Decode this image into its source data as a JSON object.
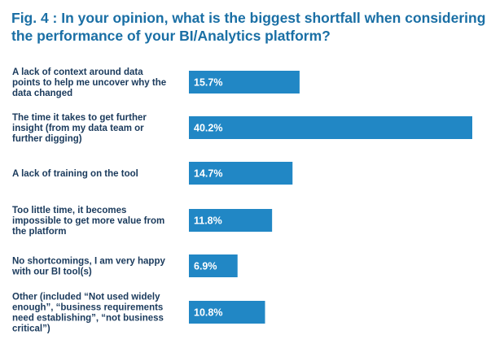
{
  "colors": {
    "title": "#1a6fa5",
    "bar": "#2187c5",
    "category_text": "#1a3a5c",
    "value_text": "#ffffff"
  },
  "chart_data": {
    "type": "bar",
    "orientation": "horizontal",
    "title": "Fig. 4 : In your opinion, what is the biggest shortfall when considering the performance of your BI/Analytics platform?",
    "xlabel": "",
    "ylabel": "",
    "unit": "%",
    "xlim": [
      0,
      40.2
    ],
    "grid": false,
    "legend": "none",
    "categories": [
      [
        "A lack of context around data",
        "points to help me uncover why the",
        "data changed"
      ],
      [
        "The time it takes to get further",
        "insight (from my data team or",
        "further digging)"
      ],
      [
        "A lack of training on the tool"
      ],
      [
        "Too little time, it becomes",
        "impossible to get more value from",
        "the platform"
      ],
      [
        "No shortcomings, I am very happy",
        "with our BI tool(s)"
      ],
      [
        "Other (included “Not used widely",
        "enough”, “business requirements",
        "need establishing”, “not business",
        "critical”)"
      ]
    ],
    "values": [
      15.7,
      40.2,
      14.7,
      11.8,
      6.9,
      10.8
    ],
    "value_labels": [
      "15.7%",
      "40.2%",
      "14.7%",
      "11.8%",
      "6.9%",
      "10.8%"
    ]
  }
}
